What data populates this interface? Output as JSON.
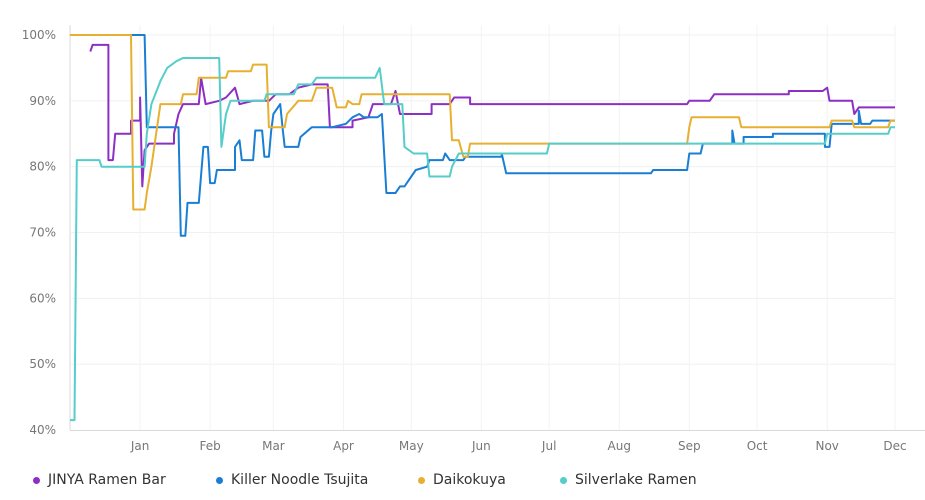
{
  "chart_data": {
    "type": "line",
    "x_range": [
      "2016-12-01",
      "2017-12-01"
    ],
    "ylim": [
      40,
      100
    ],
    "yticks": [
      {
        "value": 100,
        "label": "100%"
      },
      {
        "value": 90,
        "label": "90%"
      },
      {
        "value": 80,
        "label": "80%"
      },
      {
        "value": 70,
        "label": "70%"
      },
      {
        "value": 60,
        "label": "60%"
      },
      {
        "value": 50,
        "label": "50%"
      },
      {
        "value": 40,
        "label": "40%"
      }
    ],
    "xticks": [
      {
        "date": "2017-01-01",
        "label": "Jan"
      },
      {
        "date": "2017-02-01",
        "label": "Feb"
      },
      {
        "date": "2017-03-01",
        "label": "Mar"
      },
      {
        "date": "2017-04-01",
        "label": "Apr"
      },
      {
        "date": "2017-05-01",
        "label": "May"
      },
      {
        "date": "2017-06-01",
        "label": "Jun"
      },
      {
        "date": "2017-07-01",
        "label": "Jul"
      },
      {
        "date": "2017-08-01",
        "label": "Aug"
      },
      {
        "date": "2017-09-01",
        "label": "Sep"
      },
      {
        "date": "2017-10-01",
        "label": "Oct"
      },
      {
        "date": "2017-11-01",
        "label": "Nov"
      },
      {
        "date": "2017-12-01",
        "label": "Dec"
      }
    ],
    "grid": true,
    "legend_position": "bottom",
    "series": [
      {
        "name": "JINYA Ramen Bar",
        "color": "#8e2fc4",
        "points": [
          [
            "2016-12-10",
            97.5
          ],
          [
            "2016-12-11",
            98.5
          ],
          [
            "2016-12-18",
            98.5
          ],
          [
            "2016-12-18",
            81
          ],
          [
            "2016-12-20",
            81
          ],
          [
            "2016-12-21",
            85
          ],
          [
            "2016-12-28",
            85
          ],
          [
            "2016-12-28",
            87
          ],
          [
            "2017-01-01",
            87
          ],
          [
            "2017-01-01",
            90.5
          ],
          [
            "2017-01-02",
            77
          ],
          [
            "2017-01-03",
            82.5
          ],
          [
            "2017-01-05",
            83.5
          ],
          [
            "2017-01-16",
            83.5
          ],
          [
            "2017-01-16",
            85
          ],
          [
            "2017-01-18",
            88
          ],
          [
            "2017-01-20",
            89.5
          ],
          [
            "2017-01-27",
            89.5
          ],
          [
            "2017-01-28",
            93.5
          ],
          [
            "2017-01-30",
            89.5
          ],
          [
            "2017-02-05",
            90
          ],
          [
            "2017-02-08",
            90.5
          ],
          [
            "2017-02-12",
            92
          ],
          [
            "2017-02-14",
            89.5
          ],
          [
            "2017-02-20",
            90
          ],
          [
            "2017-02-27",
            90
          ],
          [
            "2017-03-02",
            91
          ],
          [
            "2017-03-08",
            91
          ],
          [
            "2017-03-12",
            92
          ],
          [
            "2017-03-18",
            92.5
          ],
          [
            "2017-03-25",
            92.5
          ],
          [
            "2017-03-26",
            86
          ],
          [
            "2017-04-05",
            86
          ],
          [
            "2017-04-05",
            87
          ],
          [
            "2017-04-12",
            87.5
          ],
          [
            "2017-04-14",
            89.5
          ],
          [
            "2017-04-22",
            89.5
          ],
          [
            "2017-04-24",
            91.5
          ],
          [
            "2017-04-26",
            88
          ],
          [
            "2017-05-10",
            88
          ],
          [
            "2017-05-10",
            89.5
          ],
          [
            "2017-05-18",
            89.5
          ],
          [
            "2017-05-20",
            90.5
          ],
          [
            "2017-05-27",
            90.5
          ],
          [
            "2017-05-27",
            89.5
          ],
          [
            "2017-08-31",
            89.5
          ],
          [
            "2017-09-01",
            90
          ],
          [
            "2017-09-10",
            90
          ],
          [
            "2017-09-12",
            91
          ],
          [
            "2017-10-15",
            91
          ],
          [
            "2017-10-15",
            91.5
          ],
          [
            "2017-10-30",
            91.5
          ],
          [
            "2017-11-01",
            92
          ],
          [
            "2017-11-02",
            90
          ],
          [
            "2017-11-12",
            90
          ],
          [
            "2017-11-13",
            88
          ],
          [
            "2017-11-15",
            89
          ],
          [
            "2017-12-01",
            89
          ]
        ]
      },
      {
        "name": "Killer Noodle Tsujita",
        "color": "#1a7fd4",
        "points": [
          [
            "2016-12-01",
            100
          ],
          [
            "2017-01-03",
            100
          ],
          [
            "2017-01-04",
            86
          ],
          [
            "2017-01-18",
            86
          ],
          [
            "2017-01-19",
            69.5
          ],
          [
            "2017-01-21",
            69.5
          ],
          [
            "2017-01-22",
            74.5
          ],
          [
            "2017-01-27",
            74.5
          ],
          [
            "2017-01-29",
            83
          ],
          [
            "2017-01-31",
            83
          ],
          [
            "2017-02-01",
            77.5
          ],
          [
            "2017-02-03",
            77.5
          ],
          [
            "2017-02-04",
            79.5
          ],
          [
            "2017-02-12",
            79.5
          ],
          [
            "2017-02-12",
            83
          ],
          [
            "2017-02-14",
            84
          ],
          [
            "2017-02-15",
            81
          ],
          [
            "2017-02-20",
            81
          ],
          [
            "2017-02-21",
            85.5
          ],
          [
            "2017-02-24",
            85.5
          ],
          [
            "2017-02-25",
            81.5
          ],
          [
            "2017-02-27",
            81.5
          ],
          [
            "2017-02-28",
            85.5
          ],
          [
            "2017-03-01",
            88
          ],
          [
            "2017-03-04",
            89.5
          ],
          [
            "2017-03-05",
            86
          ],
          [
            "2017-03-06",
            83
          ],
          [
            "2017-03-12",
            83
          ],
          [
            "2017-03-13",
            84.5
          ],
          [
            "2017-03-18",
            86
          ],
          [
            "2017-03-25",
            86
          ],
          [
            "2017-03-27",
            86
          ],
          [
            "2017-04-02",
            86.5
          ],
          [
            "2017-04-05",
            87.5
          ],
          [
            "2017-04-08",
            88
          ],
          [
            "2017-04-10",
            87.5
          ],
          [
            "2017-04-16",
            87.5
          ],
          [
            "2017-04-18",
            88
          ],
          [
            "2017-04-20",
            76
          ],
          [
            "2017-04-24",
            76
          ],
          [
            "2017-04-26",
            77
          ],
          [
            "2017-04-28",
            77
          ],
          [
            "2017-05-01",
            78.5
          ],
          [
            "2017-05-03",
            79.5
          ],
          [
            "2017-05-08",
            80
          ],
          [
            "2017-05-09",
            81
          ],
          [
            "2017-05-15",
            81
          ],
          [
            "2017-05-16",
            82
          ],
          [
            "2017-05-18",
            81
          ],
          [
            "2017-05-24",
            81
          ],
          [
            "2017-05-25",
            81.5
          ],
          [
            "2017-06-10",
            81.5
          ],
          [
            "2017-06-10",
            82
          ],
          [
            "2017-06-12",
            79
          ],
          [
            "2017-08-15",
            79
          ],
          [
            "2017-08-16",
            79.5
          ],
          [
            "2017-08-31",
            79.5
          ],
          [
            "2017-09-01",
            82
          ],
          [
            "2017-09-06",
            82
          ],
          [
            "2017-09-07",
            83.5
          ],
          [
            "2017-09-20",
            83.5
          ],
          [
            "2017-09-20",
            85.5
          ],
          [
            "2017-09-21",
            83.5
          ],
          [
            "2017-09-25",
            83.5
          ],
          [
            "2017-09-25",
            84.5
          ],
          [
            "2017-10-08",
            84.5
          ],
          [
            "2017-10-08",
            85
          ],
          [
            "2017-10-31",
            85
          ],
          [
            "2017-10-31",
            83
          ],
          [
            "2017-11-02",
            83
          ],
          [
            "2017-11-03",
            86.5
          ],
          [
            "2017-11-15",
            86.5
          ],
          [
            "2017-11-15",
            88.5
          ],
          [
            "2017-11-16",
            86.5
          ],
          [
            "2017-11-20",
            86.5
          ],
          [
            "2017-11-21",
            87
          ],
          [
            "2017-12-01",
            87
          ]
        ]
      },
      {
        "name": "Daikokuya",
        "color": "#e7b030",
        "points": [
          [
            "2016-12-01",
            100
          ],
          [
            "2016-12-28",
            100
          ],
          [
            "2016-12-29",
            73.5
          ],
          [
            "2017-01-03",
            73.5
          ],
          [
            "2017-01-04",
            76
          ],
          [
            "2017-01-06",
            80
          ],
          [
            "2017-01-10",
            89.5
          ],
          [
            "2017-01-19",
            89.5
          ],
          [
            "2017-01-20",
            91
          ],
          [
            "2017-01-26",
            91
          ],
          [
            "2017-01-27",
            93.5
          ],
          [
            "2017-02-08",
            93.5
          ],
          [
            "2017-02-09",
            94.5
          ],
          [
            "2017-02-19",
            94.5
          ],
          [
            "2017-02-20",
            95.5
          ],
          [
            "2017-02-26",
            95.5
          ],
          [
            "2017-02-27",
            86
          ],
          [
            "2017-03-06",
            86
          ],
          [
            "2017-03-07",
            88
          ],
          [
            "2017-03-12",
            90
          ],
          [
            "2017-03-18",
            90
          ],
          [
            "2017-03-20",
            92
          ],
          [
            "2017-03-27",
            92
          ],
          [
            "2017-03-29",
            89
          ],
          [
            "2017-04-02",
            89
          ],
          [
            "2017-04-03",
            90
          ],
          [
            "2017-04-05",
            89.5
          ],
          [
            "2017-04-08",
            89.5
          ],
          [
            "2017-04-09",
            91
          ],
          [
            "2017-05-18",
            91
          ],
          [
            "2017-05-19",
            84
          ],
          [
            "2017-05-22",
            84
          ],
          [
            "2017-05-24",
            81.5
          ],
          [
            "2017-05-26",
            81.5
          ],
          [
            "2017-05-27",
            83.5
          ],
          [
            "2017-08-31",
            83.5
          ],
          [
            "2017-09-01",
            86
          ],
          [
            "2017-09-02",
            87.5
          ],
          [
            "2017-09-23",
            87.5
          ],
          [
            "2017-09-24",
            86
          ],
          [
            "2017-11-02",
            86
          ],
          [
            "2017-11-03",
            87
          ],
          [
            "2017-11-12",
            87
          ],
          [
            "2017-11-13",
            86
          ],
          [
            "2017-11-28",
            86
          ],
          [
            "2017-11-29",
            87
          ],
          [
            "2017-12-01",
            87
          ]
        ]
      },
      {
        "name": "Silverlake Ramen",
        "color": "#55cdc9",
        "points": [
          [
            "2016-12-01",
            41.5
          ],
          [
            "2016-12-03",
            41.5
          ],
          [
            "2016-12-04",
            81
          ],
          [
            "2016-12-14",
            81
          ],
          [
            "2016-12-15",
            80
          ],
          [
            "2017-01-03",
            80
          ],
          [
            "2017-01-04",
            85
          ],
          [
            "2017-01-06",
            89.5
          ],
          [
            "2017-01-10",
            93
          ],
          [
            "2017-01-13",
            95
          ],
          [
            "2017-01-17",
            96
          ],
          [
            "2017-01-20",
            96.5
          ],
          [
            "2017-02-05",
            96.5
          ],
          [
            "2017-02-06",
            83
          ],
          [
            "2017-02-08",
            88
          ],
          [
            "2017-02-10",
            90
          ],
          [
            "2017-02-25",
            90
          ],
          [
            "2017-02-26",
            91
          ],
          [
            "2017-03-10",
            91
          ],
          [
            "2017-03-12",
            92.5
          ],
          [
            "2017-03-18",
            92.5
          ],
          [
            "2017-03-20",
            93.5
          ],
          [
            "2017-04-15",
            93.5
          ],
          [
            "2017-04-17",
            95
          ],
          [
            "2017-04-19",
            89.5
          ],
          [
            "2017-04-27",
            89.5
          ],
          [
            "2017-04-28",
            83
          ],
          [
            "2017-05-02",
            82
          ],
          [
            "2017-05-08",
            82
          ],
          [
            "2017-05-09",
            78.5
          ],
          [
            "2017-05-18",
            78.5
          ],
          [
            "2017-05-19",
            80
          ],
          [
            "2017-05-22",
            82
          ],
          [
            "2017-06-30",
            82
          ],
          [
            "2017-07-01",
            83.5
          ],
          [
            "2017-10-31",
            83.5
          ],
          [
            "2017-11-01",
            85
          ],
          [
            "2017-11-28",
            85
          ],
          [
            "2017-11-29",
            86
          ],
          [
            "2017-12-01",
            86
          ]
        ]
      }
    ]
  }
}
